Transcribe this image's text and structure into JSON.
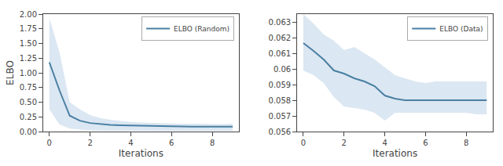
{
  "chart_data": [
    {
      "type": "line",
      "x": [
        0,
        0.5,
        1,
        1.5,
        2,
        2.5,
        3,
        3.5,
        4,
        4.5,
        5,
        5.5,
        6,
        6.5,
        7,
        7.5,
        8,
        8.5,
        9
      ],
      "series": [
        {
          "type": "band",
          "color": "#bdd4e7",
          "upper": [
            1.93,
            1.35,
            0.5,
            0.38,
            0.28,
            0.23,
            0.2,
            0.18,
            0.165,
            0.155,
            0.148,
            0.142,
            0.138,
            0.135,
            0.133,
            0.13,
            0.128,
            0.128,
            0.132
          ],
          "lower": [
            0.38,
            0.12,
            0.05,
            0.03,
            0.02,
            0.018,
            0.016,
            0.014,
            0.013,
            0.012,
            0.011,
            0.01,
            0.01,
            0.01,
            0.009,
            0.009,
            0.009,
            0.009,
            0.01
          ]
        },
        {
          "type": "line",
          "name": "ELBO (Random)",
          "color": "#4a7fa3",
          "values": [
            1.18,
            0.7,
            0.27,
            0.185,
            0.145,
            0.125,
            0.115,
            0.108,
            0.103,
            0.098,
            0.093,
            0.09,
            0.088,
            0.086,
            0.085,
            0.083,
            0.082,
            0.082,
            0.085
          ]
        }
      ],
      "xlabel": "Iterations",
      "ylabel": "ELBO",
      "xlim": [
        -0.3,
        9.3
      ],
      "ylim": [
        0.0,
        2.0
      ],
      "xticks": [
        0,
        2,
        4,
        6,
        8
      ],
      "yticks": [
        {
          "value": 0.0,
          "label": "0.00"
        },
        0.25,
        {
          "value": 0.5,
          "label": "0.50"
        },
        0.75,
        {
          "value": 1.0,
          "label": "1.00"
        },
        1.25,
        {
          "value": 1.5,
          "label": "1.50"
        },
        1.75,
        {
          "value": 2.0,
          "label": "2.00"
        }
      ],
      "legend": "upper right",
      "grid": false
    },
    {
      "type": "line",
      "x": [
        0,
        0.5,
        1,
        1.5,
        2,
        2.5,
        3,
        3.5,
        4,
        4.5,
        5,
        5.5,
        6,
        6.5,
        7,
        7.5,
        8,
        8.5,
        9
      ],
      "series": [
        {
          "type": "band",
          "color": "#bdd4e7",
          "upper": [
            0.0635,
            0.0629,
            0.0622,
            0.0618,
            0.0612,
            0.0614,
            0.061,
            0.0606,
            0.0601,
            0.0596,
            0.0594,
            0.0592,
            0.0591,
            0.0592,
            0.0592,
            0.0592,
            0.0592,
            0.0592,
            0.0592
          ],
          "lower": [
            0.0599,
            0.0596,
            0.0591,
            0.0582,
            0.0576,
            0.0575,
            0.0574,
            0.0572,
            0.0567,
            0.0572,
            0.0572,
            0.0572,
            0.0572,
            0.0572,
            0.0572,
            0.0572,
            0.0572,
            0.0571,
            0.0571
          ]
        },
        {
          "type": "line",
          "name": "ELBO (Data)",
          "color": "#4a7fa3",
          "values": [
            0.06165,
            0.06115,
            0.0606,
            0.0599,
            0.0597,
            0.0594,
            0.0592,
            0.0589,
            0.0583,
            0.0581,
            0.058,
            0.058,
            0.058,
            0.058,
            0.058,
            0.058,
            0.058,
            0.058,
            0.058
          ]
        }
      ],
      "xlabel": "Iterations",
      "xlim": [
        -0.3,
        9.3
      ],
      "ylim": [
        0.056,
        0.0635
      ],
      "xticks": [
        0,
        2,
        4,
        6,
        8
      ],
      "yticks": [
        0.056,
        0.057,
        0.058,
        0.059,
        0.06,
        0.061,
        0.062,
        0.063
      ],
      "legend": "upper right",
      "grid": false
    }
  ]
}
